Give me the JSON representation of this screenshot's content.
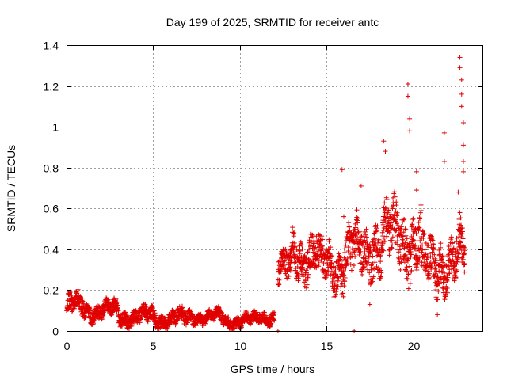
{
  "chart_data": {
    "type": "scatter",
    "title": "Day 199 of 2025, SRMTID for receiver antc",
    "xlabel": "GPS time / hours",
    "ylabel": "SRMTID / TECUs",
    "xlim": [
      0,
      24
    ],
    "ylim": [
      0,
      1.4
    ],
    "xticks": [
      0,
      5,
      10,
      15,
      20
    ],
    "yticks": [
      0,
      0.2,
      0.4,
      0.6,
      0.8,
      1,
      1.2,
      1.4
    ],
    "xtick_labels": [
      "0",
      "5",
      "10",
      "15",
      "20"
    ],
    "ytick_labels": [
      "0",
      "0.2",
      "0.4",
      "0.6",
      "0.8",
      "1",
      "1.2",
      "1.4"
    ],
    "grid": true,
    "marker": "+",
    "color": "#e00000",
    "series": [
      {
        "name": "SRMTID",
        "segments": [
          {
            "x_start": 0.0,
            "x_end": 1.0,
            "base": 0.12,
            "spread": 0.05
          },
          {
            "x_start": 1.0,
            "x_end": 3.0,
            "base": 0.1,
            "spread": 0.04
          },
          {
            "x_start": 3.0,
            "x_end": 5.0,
            "base": 0.07,
            "spread": 0.04
          },
          {
            "x_start": 5.0,
            "x_end": 7.0,
            "base": 0.06,
            "spread": 0.04
          },
          {
            "x_start": 7.0,
            "x_end": 9.0,
            "base": 0.07,
            "spread": 0.03
          },
          {
            "x_start": 9.0,
            "x_end": 11.0,
            "base": 0.05,
            "spread": 0.03
          },
          {
            "x_start": 11.0,
            "x_end": 12.0,
            "base": 0.07,
            "spread": 0.03
          },
          {
            "x_start": 12.2,
            "x_end": 13.0,
            "base": 0.3,
            "spread": 0.08
          },
          {
            "x_start": 13.0,
            "x_end": 14.5,
            "base": 0.38,
            "spread": 0.1
          },
          {
            "x_start": 14.5,
            "x_end": 16.0,
            "base": 0.32,
            "spread": 0.1
          },
          {
            "x_start": 16.0,
            "x_end": 17.5,
            "base": 0.38,
            "spread": 0.12
          },
          {
            "x_start": 17.5,
            "x_end": 19.0,
            "base": 0.45,
            "spread": 0.14
          },
          {
            "x_start": 19.0,
            "x_end": 20.5,
            "base": 0.45,
            "spread": 0.14
          },
          {
            "x_start": 20.5,
            "x_end": 21.5,
            "base": 0.3,
            "spread": 0.12
          },
          {
            "x_start": 21.5,
            "x_end": 23.0,
            "base": 0.35,
            "spread": 0.12
          }
        ],
        "peaks": [
          {
            "x": 15.9,
            "y": 0.79
          },
          {
            "x": 16.0,
            "y": 0.56
          },
          {
            "x": 17.0,
            "y": 0.71
          },
          {
            "x": 18.3,
            "y": 0.93
          },
          {
            "x": 18.4,
            "y": 0.88
          },
          {
            "x": 19.7,
            "y": 1.21
          },
          {
            "x": 19.7,
            "y": 1.15
          },
          {
            "x": 19.8,
            "y": 1.04
          },
          {
            "x": 19.8,
            "y": 0.98
          },
          {
            "x": 20.2,
            "y": 0.78
          },
          {
            "x": 20.2,
            "y": 0.69
          },
          {
            "x": 21.8,
            "y": 0.97
          },
          {
            "x": 21.8,
            "y": 0.83
          },
          {
            "x": 22.7,
            "y": 1.34
          },
          {
            "x": 22.7,
            "y": 1.29
          },
          {
            "x": 22.8,
            "y": 1.23
          },
          {
            "x": 22.8,
            "y": 1.16
          },
          {
            "x": 22.8,
            "y": 1.1
          },
          {
            "x": 22.9,
            "y": 1.02
          },
          {
            "x": 22.9,
            "y": 0.91
          },
          {
            "x": 22.9,
            "y": 0.83
          },
          {
            "x": 22.9,
            "y": 0.78
          },
          {
            "x": 22.6,
            "y": 0.68
          },
          {
            "x": 22.7,
            "y": 0.58
          },
          {
            "x": 21.4,
            "y": 0.08
          },
          {
            "x": 17.5,
            "y": 0.13
          }
        ],
        "zero_points": [
          {
            "x": 12.2,
            "y": 0.0
          },
          {
            "x": 16.6,
            "y": 0.0
          }
        ]
      }
    ]
  }
}
